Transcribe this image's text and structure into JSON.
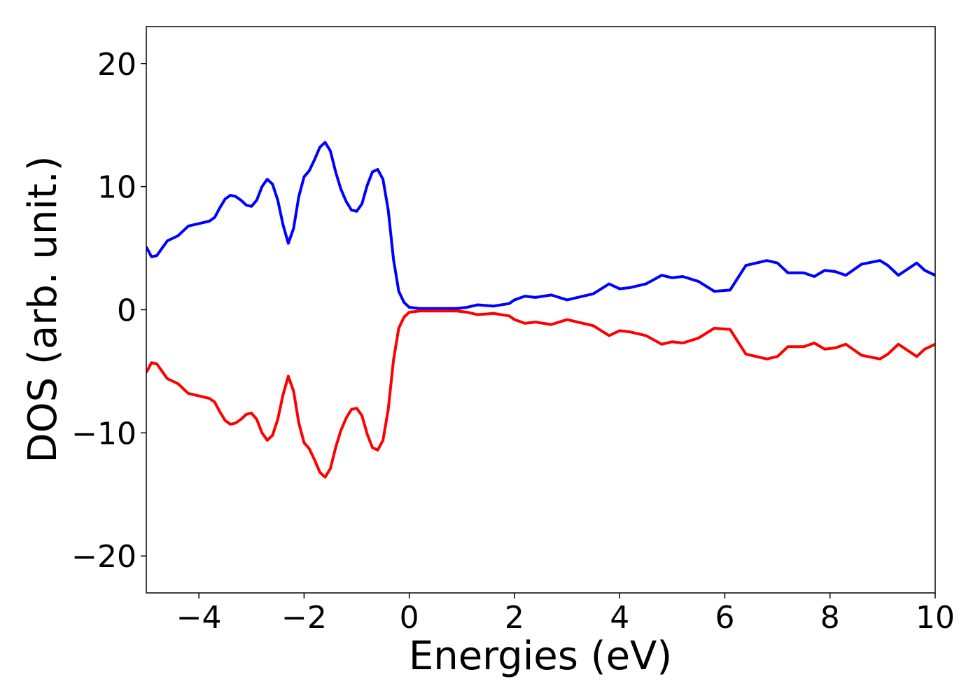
{
  "chart_data": {
    "type": "line",
    "xlabel": "Energies (eV)",
    "ylabel": "DOS (arb. unit.)",
    "x": [
      -5,
      -4.9,
      -4.8,
      -4.7,
      -4.6,
      -4.5,
      -4.4,
      -4.3,
      -4.2,
      -4.0,
      -3.8,
      -3.7,
      -3.6,
      -3.5,
      -3.4,
      -3.3,
      -3.2,
      -3.1,
      -3.0,
      -2.9,
      -2.8,
      -2.7,
      -2.6,
      -2.5,
      -2.4,
      -2.3,
      -2.2,
      -2.1,
      -2.0,
      -1.9,
      -1.8,
      -1.7,
      -1.6,
      -1.5,
      -1.4,
      -1.3,
      -1.2,
      -1.1,
      -1.0,
      -0.9,
      -0.8,
      -0.7,
      -0.6,
      -0.5,
      -0.4,
      -0.3,
      -0.2,
      -0.1,
      0,
      0.2,
      0.6,
      0.9,
      1.1,
      1.3,
      1.6,
      1.9,
      2.0,
      2.2,
      2.4,
      2.7,
      3.0,
      3.2,
      3.5,
      3.8,
      4.0,
      4.2,
      4.5,
      4.8,
      5.0,
      5.2,
      5.5,
      5.8,
      6.1,
      6.4,
      6.8,
      7.0,
      7.2,
      7.5,
      7.7,
      7.9,
      8.1,
      8.3,
      8.6,
      8.95,
      9.1,
      9.3,
      9.65,
      9.8,
      10
    ],
    "series": [
      {
        "color": "#0000ff",
        "values": [
          5.1,
          4.3,
          4.4,
          5.0,
          5.6,
          5.8,
          6.0,
          6.4,
          6.8,
          7.0,
          7.2,
          7.5,
          8.3,
          9.0,
          9.3,
          9.2,
          8.9,
          8.5,
          8.4,
          8.9,
          10.0,
          10.6,
          10.2,
          8.9,
          6.9,
          5.4,
          6.6,
          9.2,
          10.8,
          11.3,
          12.2,
          13.2,
          13.6,
          12.9,
          11.2,
          9.8,
          8.8,
          8.1,
          8.0,
          8.6,
          10.1,
          11.2,
          11.4,
          10.6,
          8.1,
          4.1,
          1.5,
          0.6,
          0.2,
          0.1,
          0.1,
          0.1,
          0.2,
          0.4,
          0.3,
          0.5,
          0.8,
          1.1,
          1.0,
          1.2,
          0.8,
          1.0,
          1.3,
          2.1,
          1.7,
          1.8,
          2.1,
          2.8,
          2.6,
          2.7,
          2.3,
          1.5,
          1.6,
          3.6,
          4.0,
          3.8,
          3.0,
          3.0,
          2.7,
          3.2,
          3.1,
          2.8,
          3.7,
          4.0,
          3.6,
          2.8,
          3.8,
          3.2,
          2.8
        ]
      },
      {
        "color": "#ff0000",
        "values": [
          -5.1,
          -4.3,
          -4.4,
          -5.0,
          -5.6,
          -5.8,
          -6.0,
          -6.4,
          -6.8,
          -7.0,
          -7.2,
          -7.5,
          -8.3,
          -9.0,
          -9.3,
          -9.2,
          -8.9,
          -8.5,
          -8.4,
          -8.9,
          -10.0,
          -10.6,
          -10.2,
          -8.9,
          -6.9,
          -5.4,
          -6.6,
          -9.2,
          -10.8,
          -11.3,
          -12.2,
          -13.2,
          -13.6,
          -12.9,
          -11.2,
          -9.8,
          -8.8,
          -8.1,
          -8.0,
          -8.6,
          -10.1,
          -11.2,
          -11.4,
          -10.6,
          -8.1,
          -4.1,
          -1.5,
          -0.6,
          -0.2,
          -0.1,
          -0.1,
          -0.1,
          -0.2,
          -0.4,
          -0.3,
          -0.5,
          -0.8,
          -1.1,
          -1.0,
          -1.2,
          -0.8,
          -1.0,
          -1.3,
          -2.1,
          -1.7,
          -1.8,
          -2.1,
          -2.8,
          -2.6,
          -2.7,
          -2.3,
          -1.5,
          -1.6,
          -3.6,
          -4.0,
          -3.8,
          -3.0,
          -3.0,
          -2.7,
          -3.2,
          -3.1,
          -2.8,
          -3.7,
          -4.0,
          -3.6,
          -2.8,
          -3.8,
          -3.2,
          -2.8
        ]
      }
    ],
    "xlim": [
      -5,
      10
    ],
    "xticks": [
      {
        "value": -4,
        "label": "−4"
      },
      {
        "value": -2,
        "label": "−2"
      },
      0,
      2,
      4,
      6,
      8,
      10
    ],
    "ylim": [
      -23,
      23
    ],
    "yticks": [
      {
        "value": -20,
        "label": "−20"
      },
      {
        "value": -10,
        "label": "−10"
      },
      0,
      10,
      20
    ],
    "grid": false
  }
}
